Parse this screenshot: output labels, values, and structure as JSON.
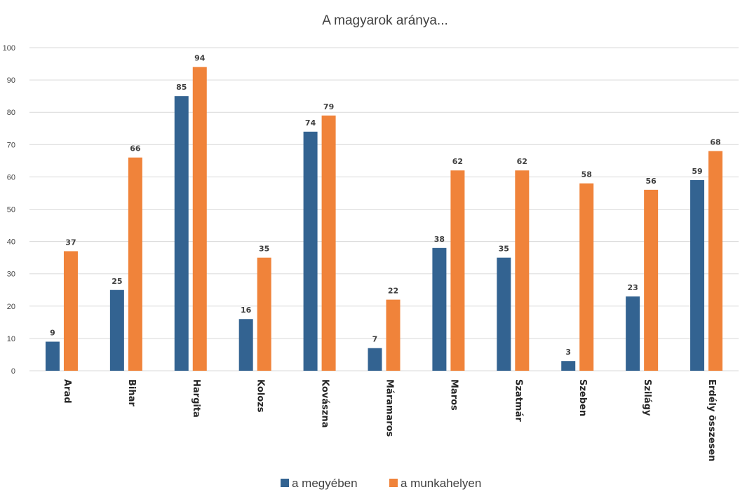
{
  "chart_data": {
    "type": "bar",
    "title": "A magyarok aránya...",
    "categories": [
      "Arad",
      "Bihar",
      "Hargita",
      "Kolozs",
      "Kovászna",
      "Máramaros",
      "Maros",
      "Szatmár",
      "Szeben",
      "Szilágy",
      "Erdély összesen"
    ],
    "series": [
      {
        "name": "a megyében",
        "color": "#336391",
        "values": [
          9,
          25,
          85,
          16,
          74,
          7,
          38,
          35,
          3,
          23,
          59
        ]
      },
      {
        "name": "a munkahelyen",
        "color": "#f0833a",
        "values": [
          37,
          66,
          94,
          35,
          79,
          22,
          62,
          62,
          58,
          56,
          68
        ]
      }
    ],
    "data_labels": [
      [
        "9",
        "25",
        "85",
        "16",
        "74",
        "7",
        "38",
        "35",
        "3",
        "23",
        "59"
      ],
      [
        "37",
        "66",
        "94",
        "35",
        "79",
        "22",
        "62",
        "62",
        "58",
        "56",
        "68"
      ]
    ],
    "y_ticks": [
      "0",
      "10",
      "20",
      "30",
      "40",
      "50",
      "60",
      "70",
      "80",
      "90",
      "100"
    ],
    "ylim": [
      0,
      100
    ],
    "grid": true,
    "legend_position": "bottom"
  }
}
